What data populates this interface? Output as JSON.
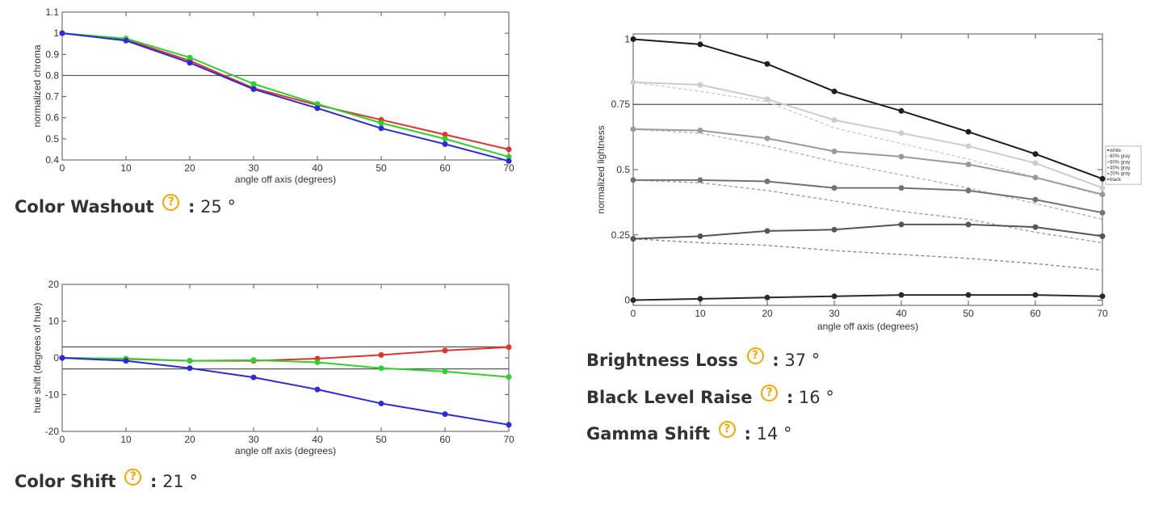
{
  "chart_data": [
    {
      "id": "chroma",
      "type": "line",
      "title": "",
      "xlabel": "angle off axis (degrees)",
      "ylabel": "normalized chroma",
      "xlim": [
        0,
        70
      ],
      "ylim": [
        0.4,
        1.1
      ],
      "xticks": [
        0,
        10,
        20,
        30,
        40,
        50,
        60,
        70
      ],
      "xtick_labels": [
        "0",
        "10",
        "20",
        "30",
        "40",
        "50",
        "60",
        "70"
      ],
      "yticks": [
        0.4,
        0.5,
        0.6,
        0.7,
        0.8,
        0.9,
        1,
        1.1
      ],
      "ytick_labels": [
        "0.4",
        "0.5",
        "0.6",
        "0.7",
        "0.8",
        "0.9",
        "1",
        "1.1"
      ],
      "reference_lines": [
        0.8
      ],
      "x": [
        0,
        10,
        20,
        30,
        40,
        50,
        60,
        70
      ],
      "series": [
        {
          "name": "red",
          "color": "#e0332b",
          "values": [
            1.0,
            0.97,
            0.87,
            0.74,
            0.66,
            0.59,
            0.52,
            0.45
          ]
        },
        {
          "name": "green",
          "color": "#2fd12f",
          "values": [
            1.0,
            0.975,
            0.885,
            0.76,
            0.665,
            0.575,
            0.5,
            0.415
          ]
        },
        {
          "name": "blue",
          "color": "#2b2bd9",
          "values": [
            1.0,
            0.965,
            0.86,
            0.735,
            0.645,
            0.55,
            0.475,
            0.395
          ]
        }
      ]
    },
    {
      "id": "hue",
      "type": "line",
      "title": "",
      "xlabel": "angle off axis (degrees)",
      "ylabel": "hue shift (degrees of hue)",
      "xlim": [
        0,
        70
      ],
      "ylim": [
        -20,
        20
      ],
      "xticks": [
        0,
        10,
        20,
        30,
        40,
        50,
        60,
        70
      ],
      "xtick_labels": [
        "0",
        "10",
        "20",
        "30",
        "40",
        "50",
        "60",
        "70"
      ],
      "yticks": [
        -20,
        -10,
        0,
        10,
        20
      ],
      "ytick_labels": [
        "-20",
        "-10",
        "0",
        "10",
        "20"
      ],
      "reference_lines": [
        3,
        -3
      ],
      "x": [
        0,
        10,
        20,
        30,
        40,
        50,
        60,
        70
      ],
      "series": [
        {
          "name": "red",
          "color": "#e0332b",
          "values": [
            0,
            -0.3,
            -0.8,
            -0.8,
            -0.2,
            0.8,
            2.0,
            2.9
          ]
        },
        {
          "name": "green",
          "color": "#2fd12f",
          "values": [
            0,
            -0.2,
            -0.8,
            -0.6,
            -1.2,
            -2.8,
            -3.7,
            -5.2
          ]
        },
        {
          "name": "blue",
          "color": "#2b2bd9",
          "values": [
            0,
            -0.8,
            -2.8,
            -5.3,
            -8.6,
            -12.4,
            -15.3,
            -18.2
          ]
        }
      ]
    },
    {
      "id": "lightness",
      "type": "line",
      "title": "",
      "xlabel": "angle off axis (degrees)",
      "ylabel": "normalized lightness",
      "xlim": [
        0,
        70
      ],
      "ylim": [
        -0.02,
        1.02
      ],
      "xticks": [
        0,
        10,
        20,
        30,
        40,
        50,
        60,
        70
      ],
      "xtick_labels": [
        "0",
        "10",
        "20",
        "30",
        "40",
        "50",
        "60",
        "70"
      ],
      "yticks": [
        0,
        0.25,
        0.5,
        0.75,
        1
      ],
      "ytick_labels": [
        "0",
        "0.25",
        "0.5",
        "0.75",
        "1"
      ],
      "reference_lines": [
        0.75
      ],
      "legend_position": "right",
      "x": [
        0,
        10,
        20,
        30,
        40,
        50,
        60,
        70
      ],
      "series": [
        {
          "name": "white",
          "color": "#1e1e1e",
          "values": [
            1.0,
            0.98,
            0.905,
            0.8,
            0.725,
            0.645,
            0.56,
            0.465
          ]
        },
        {
          "name": "80% gray",
          "color": "#cccccc",
          "values": [
            0.835,
            0.825,
            0.77,
            0.69,
            0.64,
            0.59,
            0.525,
            0.43
          ]
        },
        {
          "name": "60% gray",
          "color": "#9a9a9a",
          "values": [
            0.655,
            0.65,
            0.62,
            0.57,
            0.55,
            0.52,
            0.47,
            0.405
          ]
        },
        {
          "name": "40% gray",
          "color": "#737373",
          "values": [
            0.46,
            0.46,
            0.455,
            0.43,
            0.43,
            0.42,
            0.385,
            0.335
          ]
        },
        {
          "name": "20% gray",
          "color": "#555555",
          "values": [
            0.235,
            0.245,
            0.265,
            0.27,
            0.29,
            0.29,
            0.28,
            0.245
          ]
        },
        {
          "name": "black",
          "color": "#2a2a2a",
          "values": [
            0.0,
            0.005,
            0.01,
            0.015,
            0.02,
            0.02,
            0.02,
            0.015
          ]
        }
      ],
      "reference_series": [
        {
          "name": "80% gray expected",
          "color": "#cccccc",
          "values": [
            0.835,
            0.8,
            0.76,
            0.66,
            0.6,
            0.54,
            0.47,
            0.4
          ]
        },
        {
          "name": "60% gray expected",
          "color": "#b5b5b5",
          "values": [
            0.655,
            0.64,
            0.59,
            0.53,
            0.48,
            0.43,
            0.37,
            0.31
          ]
        },
        {
          "name": "40% gray expected",
          "color": "#a0a0a0",
          "values": [
            0.46,
            0.45,
            0.42,
            0.38,
            0.34,
            0.31,
            0.26,
            0.22
          ]
        },
        {
          "name": "20% gray expected",
          "color": "#8c8c8c",
          "values": [
            0.235,
            0.22,
            0.21,
            0.19,
            0.175,
            0.16,
            0.14,
            0.115
          ]
        }
      ]
    }
  ],
  "stats": {
    "color_washout": {
      "label": "Color Washout",
      "colon": ":",
      "value": "25 °"
    },
    "color_shift": {
      "label": "Color Shift",
      "colon": ":",
      "value": "21 °"
    },
    "brightness_loss": {
      "label": "Brightness Loss",
      "colon": ":",
      "value": "37 °"
    },
    "black_level_raise": {
      "label": "Black Level Raise",
      "colon": ":",
      "value": "16 °"
    },
    "gamma_shift": {
      "label": "Gamma Shift",
      "colon": ":",
      "value": "14 °"
    }
  },
  "help_glyph": "?"
}
